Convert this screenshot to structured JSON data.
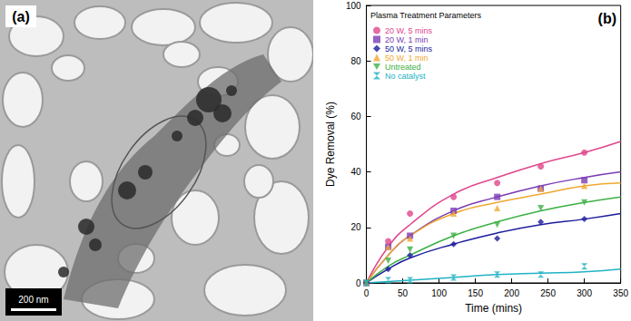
{
  "micrograph": {
    "label": "(a)",
    "scale_bar": "200 nm"
  },
  "chart_data": {
    "type": "scatter",
    "annotations": [
      {
        "text": "(b)"
      }
    ],
    "legend_title": "Plasma Treatment Parameters",
    "x_label": "Time (mins)",
    "y_label": "Dye Removal (%)",
    "x": [
      0,
      30,
      60,
      120,
      180,
      240,
      300
    ],
    "fit_x": [
      0,
      30,
      60,
      120,
      180,
      240,
      300,
      350
    ],
    "series": [
      {
        "name": "20 W, 5 mins",
        "color": "#e0468c",
        "marker": "circle",
        "values": [
          0,
          15,
          25,
          31,
          36,
          42,
          47
        ],
        "fit": [
          0,
          13,
          21,
          32,
          38,
          43,
          47,
          51
        ]
      },
      {
        "name": "20 W, 1 min",
        "color": "#7a3cb4",
        "marker": "square",
        "values": [
          0,
          13,
          17,
          26,
          31,
          34,
          37
        ],
        "fit": [
          0,
          10,
          17,
          26,
          31,
          35,
          38,
          40
        ]
      },
      {
        "name": "50 W, 5 mins",
        "color": "#1c1c9c",
        "marker": "diamond",
        "values": [
          0,
          5,
          10,
          14,
          16,
          22,
          23
        ],
        "fit": [
          0,
          5,
          9,
          14,
          18,
          21,
          23,
          25
        ]
      },
      {
        "name": "50 W, 1 min",
        "color": "#f0a830",
        "marker": "triangle",
        "values": [
          0,
          13,
          16,
          25,
          27,
          34,
          35
        ],
        "fit": [
          0,
          10,
          17,
          25,
          29,
          32,
          35,
          36
        ]
      },
      {
        "name": "Untreated",
        "color": "#3cb043",
        "marker": "triangle_down",
        "values": [
          0,
          8,
          12,
          17,
          21,
          27,
          29
        ],
        "fit": [
          0,
          6,
          10,
          17,
          22,
          26,
          29,
          31
        ]
      },
      {
        "name": "No catalyst",
        "color": "#22b2c4",
        "marker": "hourglass",
        "values": [
          0,
          1,
          1,
          2,
          3,
          3,
          6
        ],
        "fit": [
          0,
          0.5,
          1,
          2,
          3,
          3.5,
          4,
          5
        ]
      }
    ],
    "xlim": [
      0,
      350
    ],
    "xticks": [
      0,
      50,
      100,
      150,
      200,
      250,
      300,
      350
    ],
    "ylim": [
      0,
      100
    ],
    "yticks": [
      0,
      20,
      40,
      60,
      80,
      100
    ],
    "grid": false,
    "legend": "upper left"
  }
}
